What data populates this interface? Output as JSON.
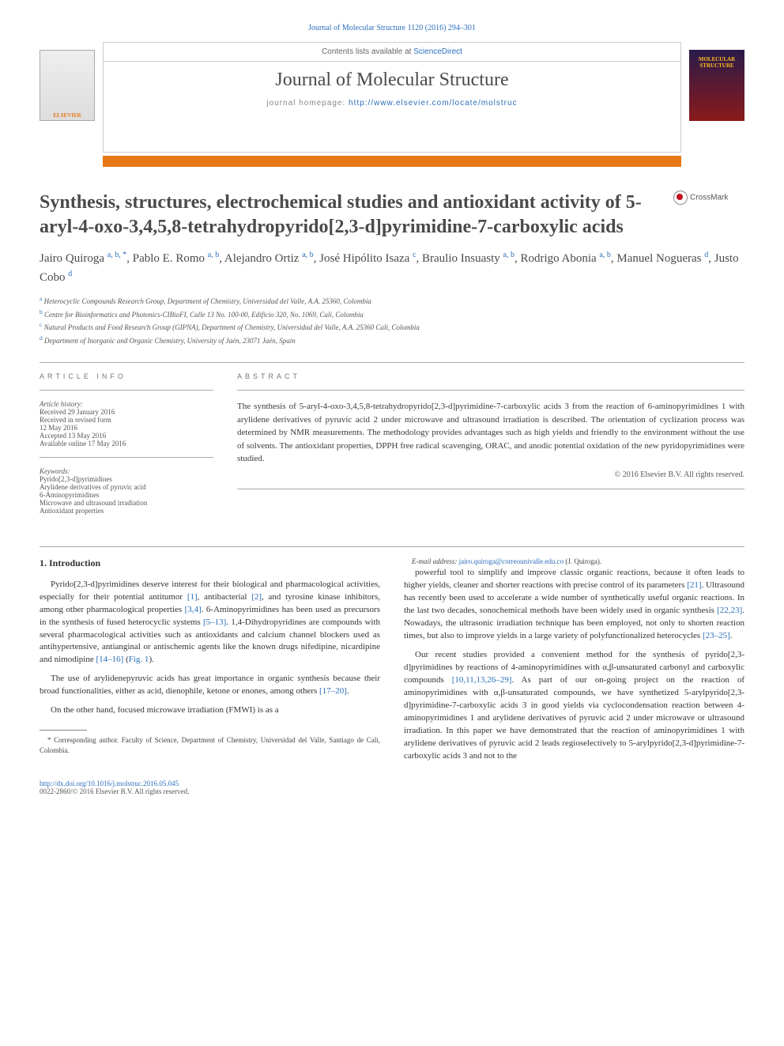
{
  "journal_ref": "Journal of Molecular Structure 1120 (2016) 294–301",
  "header": {
    "contents_label": "Contents lists available at ",
    "contents_link": "ScienceDirect",
    "journal_name": "Journal of Molecular Structure",
    "homepage_label": "journal homepage: ",
    "homepage_url": "http://www.elsevier.com/locate/molstruc",
    "publisher_logo": "ELSEVIER",
    "cover_text": "MOLECULAR STRUCTURE"
  },
  "crossmark": "CrossMark",
  "title": "Synthesis, structures, electrochemical studies and antioxidant activity of 5-aryl-4-oxo-3,4,5,8-tetrahydropyrido[2,3-d]pyrimidine-7-carboxylic acids",
  "authors_html": "Jairo Quiroga <sup>a, b, *</sup>, Pablo E. Romo <sup>a, b</sup>, Alejandro Ortiz <sup>a, b</sup>, José Hipólito Isaza <sup>c</sup>, Braulio Insuasty <sup>a, b</sup>, Rodrigo Abonia <sup>a, b</sup>, Manuel Nogueras <sup>d</sup>, Justo Cobo <sup>d</sup>",
  "affiliations": [
    {
      "sup": "a",
      "text": "Heterocyclic Compounds Research Group, Department of Chemistry, Universidad del Valle, A.A. 25360, Colombia"
    },
    {
      "sup": "b",
      "text": "Centre for Bioinformatics and Photonics-CIBioFI, Calle 13 No. 100-00, Edificio 320, No. 1069, Cali, Colombia"
    },
    {
      "sup": "c",
      "text": "Natural Products and Food Research Group (GIPNA), Department of Chemistry, Universidad del Valle, A.A. 25360 Cali, Colombia"
    },
    {
      "sup": "d",
      "text": "Department of Inorganic and Organic Chemistry, University of Jaén, 23071 Jaén, Spain"
    }
  ],
  "article_info": {
    "heading": "ARTICLE INFO",
    "history_label": "Article history:",
    "received": "Received 29 January 2016",
    "revised": "Received in revised form",
    "revised_date": "12 May 2016",
    "accepted": "Accepted 13 May 2016",
    "online": "Available online 17 May 2016",
    "keywords_label": "Keywords:",
    "keywords": [
      "Pyrido[2,3-d]pyrimidines",
      "Arylidene derivatives of pyruvic acid",
      "6-Aminopyrimidines",
      "Microwave and ultrasound irradiation",
      "Antioxidant properties"
    ]
  },
  "abstract": {
    "heading": "ABSTRACT",
    "text": "The synthesis of 5-aryl-4-oxo-3,4,5,8-tetrahydropyrido[2,3-d]pyrimidine-7-carboxylic acids 3 from the reaction of 6-aminopyrimidines 1 with arylidene derivatives of pyruvic acid 2 under microwave and ultrasound irradiation is described. The orientation of cyclization process was determined by NMR measurements. The methodology provides advantages such as high yields and friendly to the environment without the use of solvents. The antioxidant properties, DPPH free radical scavenging, ORAC, and anodic potential oxidation of the new pyridopyrimidines were studied.",
    "copyright": "© 2016 Elsevier B.V. All rights reserved."
  },
  "section_heading": "1. Introduction",
  "paragraphs": {
    "p1_a": "Pyrido[2,3-d]pyrimidines deserve interest for their biological and pharmacological activities, especially for their potential antitumor ",
    "p1_ref1": "[1]",
    "p1_b": ", antibacterial ",
    "p1_ref2": "[2]",
    "p1_c": ", and tyrosine kinase inhibitors, among other pharmacological properties ",
    "p1_ref3": "[3,4]",
    "p1_d": ". 6-Aminopyrimidines has been used as precursors in the synthesis of fused heterocyclic systems ",
    "p1_ref4": "[5–13]",
    "p1_e": ". 1,4-Dihydropyridines are compounds with several pharmacological activities such as antioxidants and calcium channel blockers used as antihypertensive, antianginal or antischemic agents like the known drugs nifedipine, nicardipine and nimodipine ",
    "p1_ref5": "[14–16]",
    "p1_f": " (",
    "p1_ref6": "Fig. 1",
    "p1_g": ").",
    "p2_a": "The use of arylidenepyruvic acids has great importance in organic synthesis because their broad functionalities, either as acid, dienophile, ketone or enones, among others ",
    "p2_ref1": "[17–20]",
    "p2_b": ".",
    "p3_a": "On the other hand, focused microwave irradiation (FMWI) is as a",
    "p4_a": "powerful tool to simplify and improve classic organic reactions, because it often leads to higher yields, cleaner and shorter reactions with precise control of its parameters ",
    "p4_ref1": "[21]",
    "p4_b": ". Ultrasound has recently been used to accelerate a wide number of synthetically useful organic reactions. In the last two decades, sonochemical methods have been widely used in organic synthesis ",
    "p4_ref2": "[22,23]",
    "p4_c": ". Nowadays, the ultrasonic irradiation technique has been employed, not only to shorten reaction times, but also to improve yields in a large variety of polyfunctionalized heterocycles ",
    "p4_ref3": "[23–25]",
    "p4_d": ".",
    "p5_a": "Our recent studies provided a convenient method for the synthesis of pyrido[2,3-d]pyrimidines by reactions of 4-aminopyrimidines with α,β-unsaturated carbonyl and carboxylic compounds ",
    "p5_ref1": "[10,11,13,26–29]",
    "p5_b": ". As part of our on-going project on the reaction of aminopyrimidines with α,β-unsaturated compounds, we have synthetized 5-arylpyrido[2,3-d]pyrimidine-7-carboxylic acids 3 in good yields via cyclocondensation reaction between 4-aminopyrimidines 1 and arylidene derivatives of pyruvic acid 2 under microwave or ultrasound irradiation. In this paper we have demonstrated that the reaction of aminopyrimidines 1 with arylidene derivatives of pyruvic acid 2 leads regioselectively to 5-arylpyrido[2,3-d]pyrimidine-7-carboxylic acids 3 and not to the"
  },
  "footnotes": {
    "corr_label": "* Corresponding author. Faculty of Science, Department of Chemistry, Universidad del Valle, Santiago de Cali, Colombia.",
    "email_label": "E-mail address: ",
    "email": "jairo.quiroga@correounivalle.edu.co",
    "email_suffix": " (J. Quiroga)."
  },
  "footer": {
    "doi": "http://dx.doi.org/10.1016/j.molstruc.2016.05.045",
    "issn": "0022-2860/© 2016 Elsevier B.V. All rights reserved."
  },
  "colors": {
    "link": "#2a6ebb",
    "accent": "#e67817",
    "text": "#333333"
  }
}
